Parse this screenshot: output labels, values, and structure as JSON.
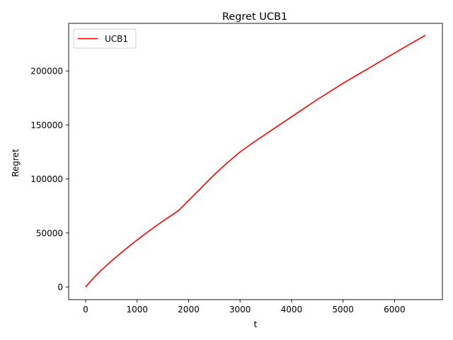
{
  "chart_data": {
    "type": "line",
    "title": "Regret UCB1",
    "xlabel": "t",
    "ylabel": "Regret",
    "xlim": [
      -330,
      6930
    ],
    "ylim": [
      -11700,
      244000
    ],
    "xticks": [
      0,
      1000,
      2000,
      3000,
      4000,
      5000,
      6000
    ],
    "yticks": [
      0,
      50000,
      100000,
      150000,
      200000
    ],
    "grid": false,
    "legend": {
      "placement": "upper-left"
    },
    "series": [
      {
        "name": "UCB1",
        "color": "#ff0000",
        "x": [
          0,
          100,
          200,
          300,
          500,
          750,
          1000,
          1250,
          1500,
          1800,
          2000,
          2250,
          2500,
          2750,
          3000,
          3250,
          3500,
          3750,
          4000,
          4250,
          4500,
          4750,
          5000,
          5250,
          5500,
          5750,
          6000,
          6250,
          6600
        ],
        "y": [
          0,
          5600,
          10600,
          15300,
          24000,
          34000,
          43500,
          52500,
          61000,
          70500,
          80000,
          92000,
          104000,
          115000,
          125000,
          133500,
          141500,
          149500,
          157500,
          165500,
          173500,
          181000,
          188500,
          195500,
          202500,
          209500,
          216500,
          223500,
          233000
        ]
      }
    ]
  }
}
